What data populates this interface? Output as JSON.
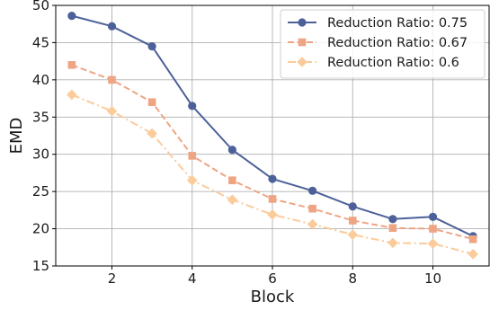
{
  "chart_data": {
    "type": "line",
    "title": "",
    "xlabel": "Block",
    "ylabel": "EMD",
    "xlim": [
      0.6,
      11.4
    ],
    "ylim": [
      15,
      50
    ],
    "x_ticks": [
      2,
      4,
      6,
      8,
      10
    ],
    "y_ticks": [
      15,
      20,
      25,
      30,
      35,
      40,
      45,
      50
    ],
    "grid": true,
    "legend_position": "top-right",
    "x": [
      1,
      2,
      3,
      4,
      5,
      6,
      7,
      8,
      9,
      10,
      11
    ],
    "series": [
      {
        "name": "Reduction Ratio: 0.75",
        "color": "#4c6199",
        "line_style": "solid",
        "marker": "circle",
        "values": [
          48.6,
          47.2,
          44.5,
          36.5,
          30.6,
          26.7,
          25.1,
          23.0,
          21.3,
          21.6,
          19.0
        ]
      },
      {
        "name": "Reduction Ratio: 0.67",
        "color": "#eea584",
        "line_style": "dashed",
        "marker": "square",
        "values": [
          42.0,
          40.0,
          37.0,
          29.8,
          26.5,
          24.0,
          22.7,
          21.1,
          20.1,
          20.0,
          18.6
        ]
      },
      {
        "name": "Reduction Ratio: 0.6",
        "color": "#fbcb9b",
        "line_style": "dashdot",
        "marker": "diamond",
        "values": [
          38.0,
          35.8,
          32.8,
          26.5,
          23.9,
          21.9,
          20.6,
          19.2,
          18.1,
          18.0,
          16.6
        ]
      }
    ]
  }
}
